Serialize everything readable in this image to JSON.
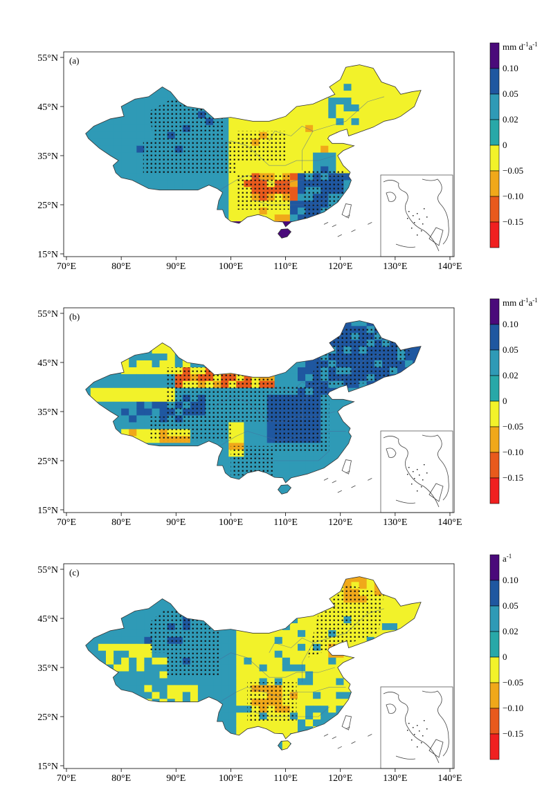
{
  "panels": [
    {
      "label": "(a)",
      "colorbar_unit": "mm d-1a-1",
      "colorbar_unit_parts": [
        [
          "mm d",
          ""
        ],
        [
          "-1",
          "sup"
        ],
        [
          "a",
          ""
        ],
        [
          "-1",
          "sup"
        ]
      ],
      "field": "mixed"
    },
    {
      "label": "(b)",
      "colorbar_unit": "mm d-1a-1",
      "colorbar_unit_parts": [
        [
          "mm d",
          ""
        ],
        [
          "-1",
          "sup"
        ],
        [
          "a",
          ""
        ],
        [
          "-1",
          "sup"
        ]
      ],
      "field": "wet"
    },
    {
      "label": "(c)",
      "colorbar_unit": "a-1",
      "colorbar_unit_parts": [
        [
          "a",
          ""
        ],
        [
          "-1",
          "sup"
        ]
      ],
      "field": "mixed"
    }
  ],
  "x_ticks": [
    "70°E",
    "80°E",
    "90°E",
    "100°E",
    "110°E",
    "120°E",
    "130°E",
    "140°E"
  ],
  "y_ticks": [
    "55°N",
    "45°N",
    "35°N",
    "25°N",
    "15°N"
  ],
  "colorbar": {
    "tick_labels": [
      "0.10",
      "0.05",
      "0.02",
      "0",
      "−0.05",
      "−0.10",
      "−0.15"
    ],
    "colors": [
      "#4a0a7a",
      "#1f57a0",
      "#2f9ab6",
      "#28a8a8",
      "#f2f22a",
      "#f0a81a",
      "#e85a1c",
      "#f02020"
    ]
  },
  "map_colors": {
    "yellow": "#f2f22a",
    "orange": "#f0a81a",
    "red_orange": "#e85a1c",
    "red": "#d8241c",
    "teal": "#2f9ab6",
    "blue": "#1f57a0",
    "purple": "#4a0a7a"
  }
}
